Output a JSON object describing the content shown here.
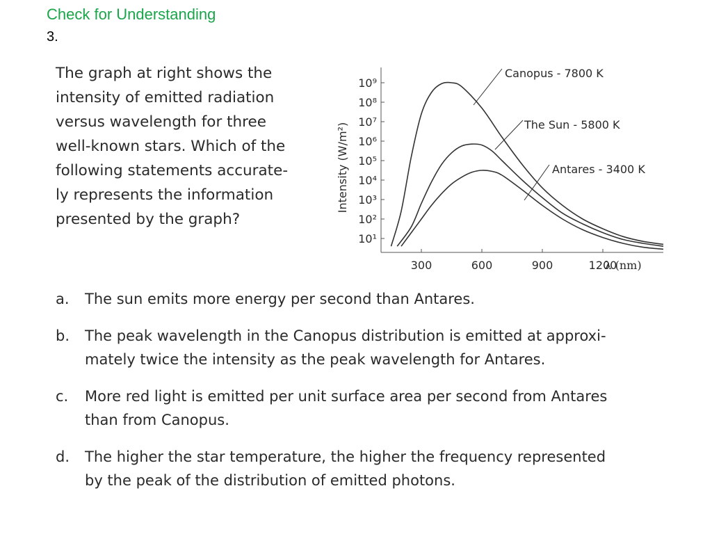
{
  "header": {
    "title": "Check for Understanding",
    "number": "3."
  },
  "question": {
    "lines": [
      "The graph at right shows the",
      "intensity of emitted radiation",
      "versus wavelength for three",
      "well-known stars.  Which of the",
      "following statements accurate-",
      "ly represents the information",
      "presented by the graph?"
    ]
  },
  "choices": [
    {
      "letter": "a.",
      "lines": [
        "The sun emits more energy per second than Antares."
      ]
    },
    {
      "letter": "b.",
      "lines": [
        "The peak wavelength in the Canopus distribution is emitted at approxi-",
        "mately twice the intensity as the peak wavelength for Antares."
      ]
    },
    {
      "letter": "c.",
      "lines": [
        "More red light is emitted per unit surface area per second from Antares",
        "than from Canopus."
      ]
    },
    {
      "letter": "d.",
      "lines": [
        "The higher the star temperature, the higher the frequency represented",
        "by the peak of the distribution of emitted photons."
      ]
    }
  ],
  "chart_data": {
    "type": "line",
    "title": "",
    "xlabel": "λ (nm)",
    "ylabel": "Intensity (W/m²)",
    "x_ticks": [
      "300",
      "600",
      "900",
      "1200"
    ],
    "x_tick_values": [
      300,
      600,
      900,
      1200
    ],
    "y_ticks": [
      "10¹",
      "10²",
      "10³",
      "10⁴",
      "10⁵",
      "10⁶",
      "10⁷",
      "10⁸",
      "10⁹"
    ],
    "y_tick_exponents": [
      1,
      2,
      3,
      4,
      5,
      6,
      7,
      8,
      9
    ],
    "xlim": [
      100,
      1500
    ],
    "ylim_exponent": [
      0.5,
      9.5
    ],
    "grid": false,
    "legend": "none",
    "series": [
      {
        "name": "Canopus - 7800 K",
        "x": [
          150,
          200,
          250,
          300,
          350,
          400,
          450,
          500,
          600,
          700,
          800,
          900,
          1000,
          1100,
          1200,
          1300,
          1400,
          1500
        ],
        "y_exponent": [
          0.6,
          2.4,
          5.2,
          7.4,
          8.5,
          8.95,
          9.0,
          8.8,
          7.7,
          6.2,
          4.8,
          3.6,
          2.7,
          2.0,
          1.5,
          1.1,
          0.85,
          0.7
        ],
        "color": "#333333"
      },
      {
        "name": "The Sun - 5800 K",
        "x": [
          180,
          250,
          300,
          350,
          400,
          450,
          500,
          550,
          600,
          650,
          700,
          800,
          900,
          1000,
          1100,
          1200,
          1300,
          1400,
          1500
        ],
        "y_exponent": [
          0.6,
          1.6,
          2.8,
          3.9,
          4.8,
          5.4,
          5.75,
          5.85,
          5.8,
          5.5,
          5.0,
          4.0,
          3.1,
          2.3,
          1.75,
          1.3,
          0.95,
          0.75,
          0.6
        ],
        "color": "#333333"
      },
      {
        "name": "Antares - 3400 K",
        "x": [
          200,
          250,
          300,
          350,
          400,
          450,
          500,
          550,
          600,
          650,
          700,
          800,
          900,
          1000,
          1100,
          1200,
          1300,
          1400,
          1500
        ],
        "y_exponent": [
          0.6,
          1.3,
          2.0,
          2.7,
          3.3,
          3.8,
          4.15,
          4.4,
          4.5,
          4.45,
          4.25,
          3.5,
          2.7,
          2.0,
          1.45,
          1.05,
          0.75,
          0.55,
          0.45
        ],
        "color": "#333333"
      }
    ],
    "annotations": [
      "Canopus - 7800 K",
      "The Sun - 5800 K",
      "Antares - 3400 K"
    ]
  }
}
